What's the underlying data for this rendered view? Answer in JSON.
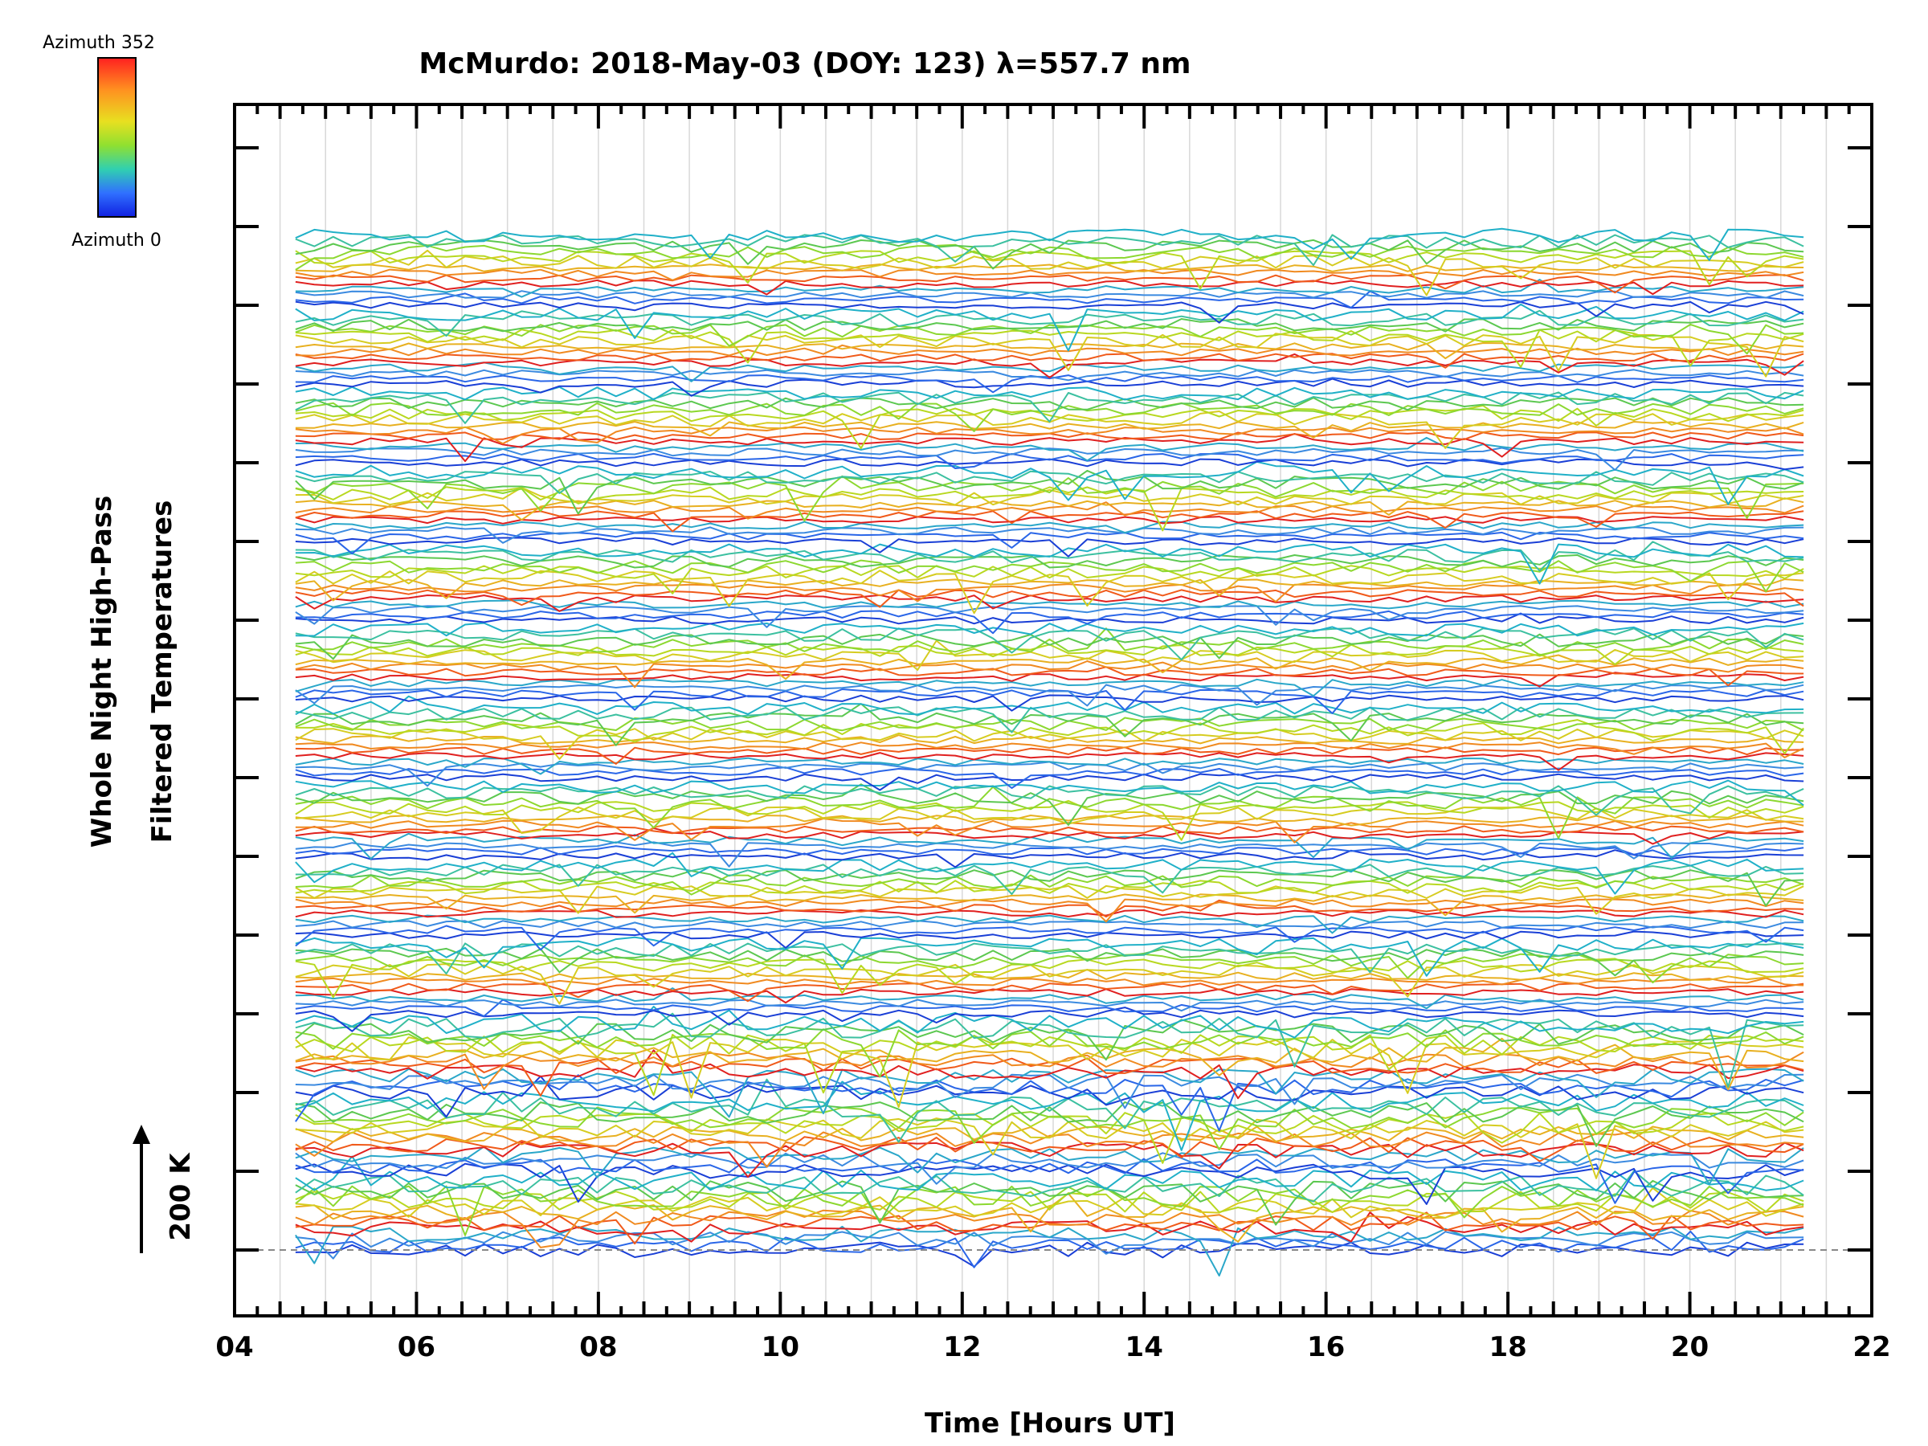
{
  "chart_data": {
    "type": "line",
    "title": "McMurdo: 2018-May-03 (DOY: 123) λ=557.7 nm",
    "xlabel": "Time [Hours UT]",
    "ylabel_line1": "Whole Night High-Pass",
    "ylabel_line2": "Filtered Temperatures",
    "xlim": [
      4,
      22
    ],
    "x_ticks": [
      "04",
      "06",
      "08",
      "10",
      "12",
      "14",
      "16",
      "18",
      "20",
      "22"
    ],
    "x_start": 4.67,
    "x_end": 21.25,
    "samples": 81,
    "scale_bar_label": "200 K",
    "colorbar": {
      "top_label": "Azimuth 352",
      "bottom_label": "Azimuth 0",
      "stops": [
        "#ff0000",
        "#ff8000",
        "#e0e000",
        "#80e020",
        "#20c0c0",
        "#2050ff",
        "#0000c0"
      ]
    },
    "series_groups": 13,
    "traces_per_group": 14,
    "group_palette": [
      "#1a3fd6",
      "#2a66e8",
      "#3b8ae0",
      "#2aa7c9",
      "#e02020",
      "#f05a1a",
      "#f08a20",
      "#e8b020",
      "#d6cc20",
      "#b8d820",
      "#8cd830",
      "#5cc850",
      "#3cc0a0",
      "#20b0c8"
    ],
    "y_ticks": 15
  }
}
